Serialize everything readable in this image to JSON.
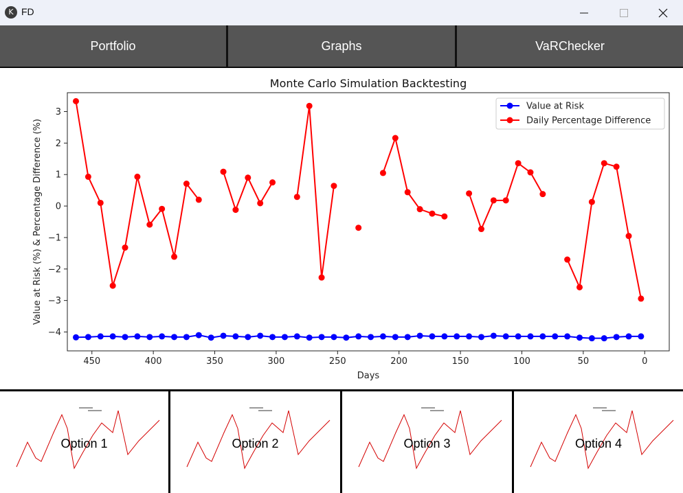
{
  "window": {
    "title": "FD",
    "icon": "kivy-icon",
    "controls": [
      "minimize-icon",
      "maximize-icon",
      "close-icon"
    ]
  },
  "tabs": [
    {
      "label": "Portfolio"
    },
    {
      "label": "Graphs"
    },
    {
      "label": "VaRChecker"
    }
  ],
  "chart_data": {
    "type": "line",
    "title": "Monte Carlo Simulation Backtesting",
    "xlabel": "Days",
    "ylabel": "Value at Risk (%) & Percentage Difference (%)",
    "xlim": [
      470,
      -20
    ],
    "ylim": [
      -4.6,
      3.6
    ],
    "x_reversed": true,
    "xticks": [
      450,
      400,
      350,
      300,
      250,
      200,
      150,
      100,
      50,
      0
    ],
    "yticks": [
      3,
      2,
      1,
      0,
      -1,
      -2,
      -3,
      -4
    ],
    "legend_position": "top-right",
    "grid": false,
    "series": [
      {
        "name": "Value at Risk",
        "color": "#0000ff",
        "x": [
          463,
          453,
          443,
          433,
          423,
          413,
          403,
          393,
          383,
          373,
          363,
          353,
          343,
          333,
          323,
          313,
          303,
          293,
          283,
          273,
          263,
          253,
          243,
          233,
          223,
          213,
          203,
          193,
          183,
          173,
          163,
          153,
          143,
          133,
          123,
          113,
          103,
          93,
          83,
          73,
          63,
          53,
          43,
          33,
          23,
          13,
          3
        ],
        "y": [
          -4.17,
          -4.16,
          -4.14,
          -4.14,
          -4.16,
          -4.14,
          -4.16,
          -4.14,
          -4.16,
          -4.16,
          -4.1,
          -4.18,
          -4.12,
          -4.14,
          -4.16,
          -4.12,
          -4.16,
          -4.16,
          -4.14,
          -4.18,
          -4.16,
          -4.16,
          -4.18,
          -4.14,
          -4.16,
          -4.14,
          -4.16,
          -4.16,
          -4.12,
          -4.14,
          -4.14,
          -4.14,
          -4.14,
          -4.16,
          -4.12,
          -4.14,
          -4.14,
          -4.14,
          -4.14,
          -4.14,
          -4.14,
          -4.18,
          -4.2,
          -4.2,
          -4.16,
          -4.14,
          -4.14
        ]
      },
      {
        "name": "Daily Percentage Difference",
        "color": "#ff0000",
        "x": [
          463,
          453,
          443,
          433,
          423,
          413,
          403,
          393,
          383,
          373,
          363,
          353,
          343,
          333,
          323,
          313,
          303,
          293,
          283,
          273,
          263,
          253,
          243,
          233,
          223,
          213,
          203,
          193,
          183,
          173,
          163,
          153,
          143,
          133,
          123,
          113,
          103,
          93,
          83,
          73,
          63,
          53,
          43,
          33,
          23,
          13,
          3
        ],
        "y": [
          3.33,
          0.93,
          0.1,
          -2.53,
          -1.32,
          0.93,
          -0.59,
          -0.09,
          -1.61,
          0.71,
          0.2,
          null,
          1.09,
          -0.12,
          0.9,
          0.09,
          0.75,
          null,
          0.29,
          3.18,
          -2.27,
          0.64,
          null,
          -0.69,
          null,
          1.05,
          2.16,
          0.44,
          -0.1,
          -0.24,
          -0.33,
          null,
          0.4,
          -0.73,
          0.18,
          0.18,
          1.36,
          1.07,
          0.38,
          null,
          -1.7,
          -2.58,
          0.13,
          1.36,
          1.25,
          -0.95,
          -2.94
        ]
      }
    ]
  },
  "options": [
    {
      "label": "Option 1"
    },
    {
      "label": "Option 2"
    },
    {
      "label": "Option 3"
    },
    {
      "label": "Option 4"
    }
  ]
}
